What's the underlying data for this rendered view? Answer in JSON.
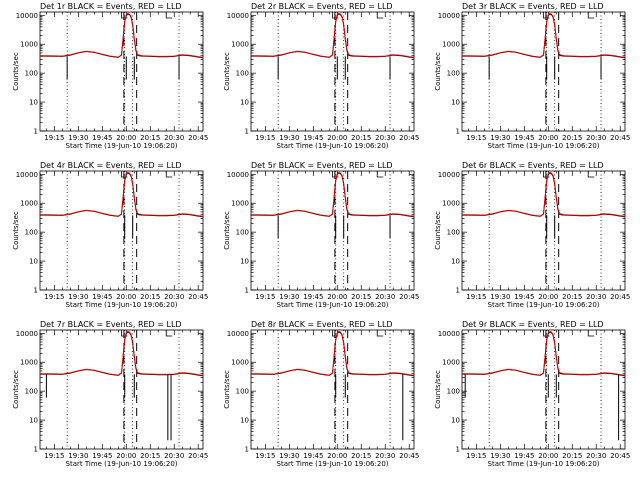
{
  "colors": {
    "events": "#000000",
    "lld": "#e00000",
    "background": "#ffffff",
    "axis": "#000000"
  },
  "chart_data": [
    {
      "type": "line",
      "title": "Det 1r BLACK = Events, RED = LLD",
      "xlabel": "Start Time (19-Jun-10 19:06:20)",
      "ylabel": "Counts/sec"
    },
    {
      "type": "line",
      "title": "Det 2r BLACK = Events, RED = LLD",
      "xlabel": "Start Time (19-Jun-10 19:06:20)",
      "ylabel": "Counts/sec"
    },
    {
      "type": "line",
      "title": "Det 3r BLACK = Events, RED = LLD",
      "xlabel": "Start Time (19-Jun-10 19:06:20)",
      "ylabel": "Counts/sec"
    },
    {
      "type": "line",
      "title": "Det 4r BLACK = Events, RED = LLD",
      "xlabel": "Start Time (19-Jun-10 19:06:20)",
      "ylabel": "Counts/sec"
    },
    {
      "type": "line",
      "title": "Det 5r BLACK = Events, RED = LLD",
      "xlabel": "Start Time (19-Jun-10 19:06:20)",
      "ylabel": "Counts/sec"
    },
    {
      "type": "line",
      "title": "Det 6r BLACK = Events, RED = LLD",
      "xlabel": "Start Time (19-Jun-10 19:06:20)",
      "ylabel": "Counts/sec"
    },
    {
      "type": "line",
      "title": "Det 7r BLACK = Events, RED = LLD",
      "xlabel": "Start Time (19-Jun-10 19:06:20)",
      "ylabel": "Counts/sec"
    },
    {
      "type": "line",
      "title": "Det 8r BLACK = Events, RED = LLD",
      "xlabel": "Start Time (19-Jun-10 19:06:20)",
      "ylabel": "Counts/sec"
    },
    {
      "type": "line",
      "title": "Det 9r BLACK = Events, RED = LLD",
      "xlabel": "Start Time (19-Jun-10 19:06:20)",
      "ylabel": "Counts/sec"
    }
  ],
  "shared": {
    "x_ticks": [
      "19:15",
      "19:30",
      "19:45",
      "20:00",
      "20:15",
      "20:30",
      "20:45"
    ],
    "x_tick_minutes": [
      1155,
      1170,
      1185,
      1200,
      1215,
      1230,
      1245
    ],
    "xlim_minutes": [
      1146,
      1248
    ],
    "y_ticks": [
      "1",
      "10",
      "100",
      "1000",
      "10000"
    ],
    "y_tick_values": [
      1,
      10,
      100,
      1000,
      10000
    ],
    "ylim": [
      1,
      13000
    ],
    "y_scale": "log",
    "dotted_vlines_minutes": [
      1163,
      1199,
      1204,
      1233
    ],
    "dashed_vlines_minutes": [
      1198.5,
      1206.5
    ],
    "flag_marks_minutes": [
      1197,
      1225
    ],
    "series": [
      {
        "name": "Events",
        "x": [
          1146,
          1150,
          1155,
          1160,
          1165,
          1170,
          1175,
          1180,
          1185,
          1190,
          1195,
          1197,
          1198,
          1199,
          1200,
          1201,
          1202,
          1203,
          1204,
          1205,
          1206,
          1207,
          1208,
          1210,
          1215,
          1220,
          1225,
          1230,
          1235,
          1240,
          1245,
          1248
        ],
        "y": [
          390,
          390,
          385,
          380,
          420,
          500,
          560,
          520,
          440,
          380,
          350,
          420,
          1500,
          6000,
          10000,
          11000,
          10500,
          8500,
          4500,
          1500,
          600,
          420,
          400,
          390,
          380,
          370,
          370,
          380,
          420,
          400,
          360,
          340
        ]
      },
      {
        "name": "LLD",
        "x": [
          1146,
          1150,
          1155,
          1160,
          1165,
          1170,
          1175,
          1180,
          1185,
          1190,
          1195,
          1197,
          1198,
          1199,
          1200,
          1201,
          1202,
          1203,
          1204,
          1205,
          1206,
          1207,
          1208,
          1210,
          1215,
          1220,
          1225,
          1230,
          1235,
          1240,
          1245,
          1248
        ],
        "y": [
          400,
          400,
          395,
          390,
          430,
          510,
          570,
          530,
          450,
          390,
          360,
          430,
          1600,
          6200,
          10500,
          11500,
          11000,
          9000,
          4800,
          1600,
          650,
          440,
          420,
          400,
          390,
          380,
          380,
          390,
          430,
          410,
          370,
          350
        ]
      }
    ],
    "dropouts": [
      [
        1163,
        1200,
        1205,
        1233
      ],
      [
        1163,
        1200,
        1205,
        1233
      ],
      [
        1163,
        1199,
        1204,
        1233
      ],
      [
        1199,
        1204
      ],
      [
        1163,
        1199,
        1204,
        1233
      ],
      [
        1199,
        1204
      ],
      [
        1150,
        1199,
        1205,
        1226,
        1228
      ],
      [
        1199,
        1205,
        1241
      ],
      [
        1148,
        1200,
        1205,
        1244
      ]
    ]
  }
}
